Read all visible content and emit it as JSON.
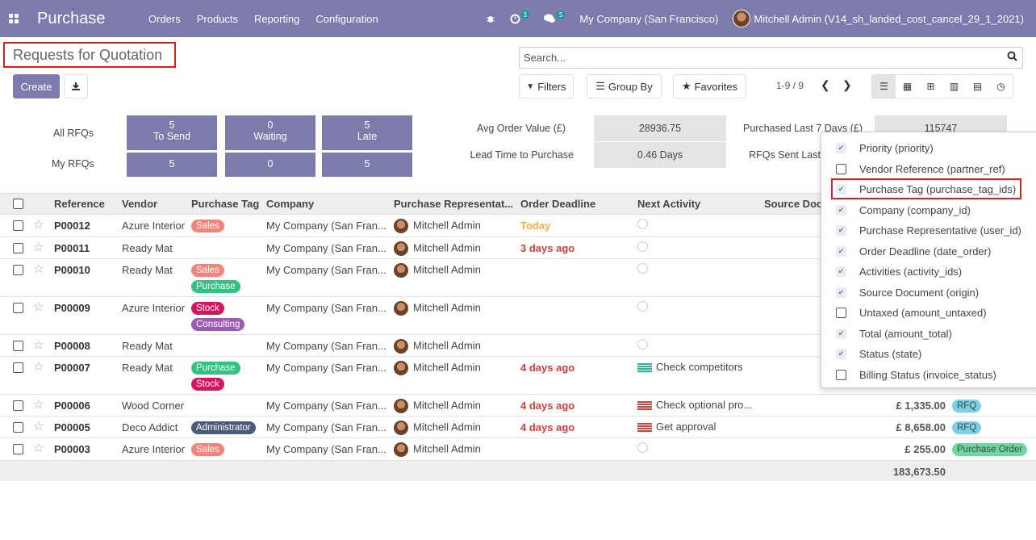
{
  "app": {
    "brand": "Purchase",
    "menu": [
      "Orders",
      "Products",
      "Reporting",
      "Configuration"
    ],
    "activity_count": "3",
    "message_count": "5",
    "company": "My Company (San Francisco)",
    "user": "Mitchell Admin (V14_sh_landed_cost_cancel_29_1_2021)"
  },
  "control": {
    "title": "Requests for Quotation",
    "create_label": "Create",
    "search_placeholder": "Search...",
    "filters_label": "Filters",
    "groupby_label": "Group By",
    "favorites_label": "Favorites",
    "pager": "1-9 / 9"
  },
  "dashboard": {
    "all_rfqs_label": "All RFQs",
    "my_rfqs_label": "My RFQs",
    "tiles": [
      {
        "count": "5",
        "label": "To Send",
        "mine": "5"
      },
      {
        "count": "0",
        "label": "Waiting",
        "mine": "0"
      },
      {
        "count": "5",
        "label": "Late",
        "mine": "5"
      }
    ],
    "avg_order_label": "Avg Order Value (£)",
    "avg_order_value": "28936.75",
    "lead_time_label": "Lead Time to Purchase",
    "lead_time_value": "0.46  Days",
    "purchased_label": "Purchased Last 7 Days (£)",
    "purchased_value": "115747",
    "rfqs_sent_label": "RFQs Sent Last"
  },
  "table": {
    "headers": [
      "Reference",
      "Vendor",
      "Purchase Tag",
      "Company",
      "Purchase Representat...",
      "Order Deadline",
      "Next Activity",
      "Source Doc"
    ],
    "rows": [
      {
        "ref": "P00012",
        "vendor": "Azure Interior",
        "tags": [
          "Sales"
        ],
        "company": "My Company (San Fran...",
        "rep": "Mitchell Admin",
        "deadline": "Today",
        "activity": "",
        "total": "",
        "status": ""
      },
      {
        "ref": "P00011",
        "vendor": "Ready Mat",
        "tags": [],
        "company": "My Company (San Fran...",
        "rep": "Mitchell Admin",
        "deadline": "3 days ago",
        "activity": "",
        "total": "",
        "status": ""
      },
      {
        "ref": "P00010",
        "vendor": "Ready Mat",
        "tags": [
          "Sales",
          "Purchase"
        ],
        "company": "My Company (San Fran...",
        "rep": "Mitchell Admin",
        "deadline": "",
        "activity": "",
        "total": "",
        "status": ""
      },
      {
        "ref": "P00009",
        "vendor": "Azure Interior",
        "tags": [
          "Stock",
          "Consulting"
        ],
        "company": "My Company (San Fran...",
        "rep": "Mitchell Admin",
        "deadline": "",
        "activity": "",
        "total": "",
        "status": ""
      },
      {
        "ref": "P00008",
        "vendor": "Ready Mat",
        "tags": [],
        "company": "My Company (San Fran...",
        "rep": "Mitchell Admin",
        "deadline": "",
        "activity": "",
        "total": "",
        "status": ""
      },
      {
        "ref": "P00007",
        "vendor": "Ready Mat",
        "tags": [
          "Purchase",
          "Stock"
        ],
        "company": "My Company (San Fran...",
        "rep": "Mitchell Admin",
        "deadline": "4 days ago",
        "activity": "Check competitors",
        "total": "",
        "status": ""
      },
      {
        "ref": "P00006",
        "vendor": "Wood Corner",
        "tags": [],
        "company": "My Company (San Fran...",
        "rep": "Mitchell Admin",
        "deadline": "4 days ago",
        "activity": "Check optional pro...",
        "total": "£ 1,335.00",
        "status": "RFQ"
      },
      {
        "ref": "P00005",
        "vendor": "Deco Addict",
        "tags": [
          "Administrator"
        ],
        "company": "My Company (San Fran...",
        "rep": "Mitchell Admin",
        "deadline": "4 days ago",
        "activity": "Get approval",
        "total": "£ 8,658.00",
        "status": "RFQ"
      },
      {
        "ref": "P00003",
        "vendor": "Azure Interior",
        "tags": [
          "Sales"
        ],
        "company": "My Company (San Fran...",
        "rep": "Mitchell Admin",
        "deadline": "",
        "activity": "",
        "total": "£ 255.00",
        "status": "Purchase Order"
      }
    ],
    "grand_total": "183,673.50"
  },
  "optional_columns": [
    {
      "label": "Priority (priority)",
      "checked": true
    },
    {
      "label": "Vendor Reference (partner_ref)",
      "checked": false
    },
    {
      "label": "Purchase Tag (purchase_tag_ids)",
      "checked": true
    },
    {
      "label": "Company (company_id)",
      "checked": true
    },
    {
      "label": "Purchase Representative (user_id)",
      "checked": true
    },
    {
      "label": "Order Deadline (date_order)",
      "checked": true
    },
    {
      "label": "Activities (activity_ids)",
      "checked": true
    },
    {
      "label": "Source Document (origin)",
      "checked": true
    },
    {
      "label": "Untaxed (amount_untaxed)",
      "checked": false
    },
    {
      "label": "Total (amount_total)",
      "checked": true
    },
    {
      "label": "Status (state)",
      "checked": true
    },
    {
      "label": "Billing Status (invoice_status)",
      "checked": false
    }
  ],
  "colors": {
    "brand": "#7c7bad",
    "highlight": "#d62020"
  }
}
